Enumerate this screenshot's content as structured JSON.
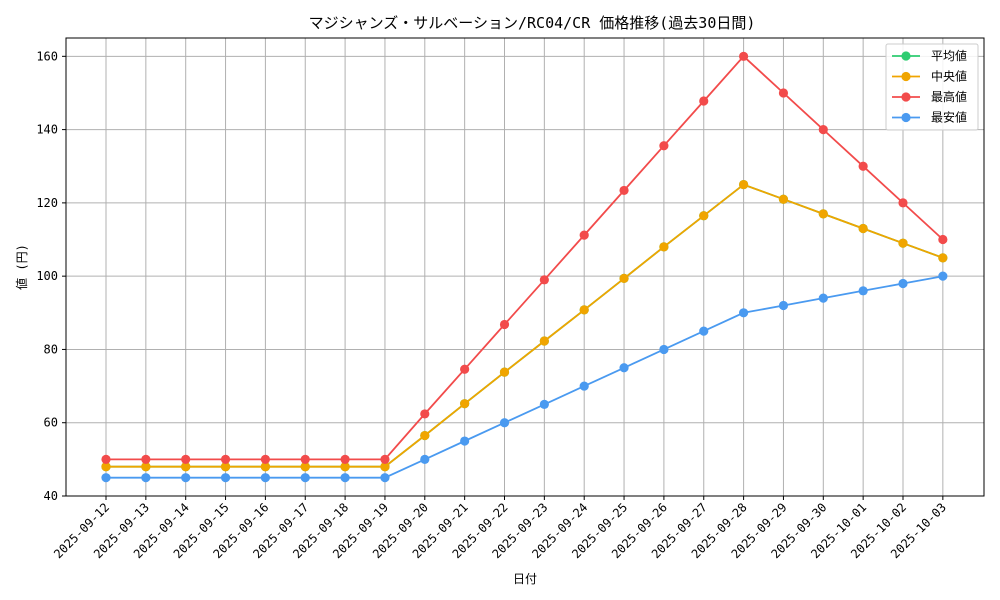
{
  "chart_data": {
    "type": "line",
    "title": "マジシャンズ・サルベーション/RC04/CR 価格推移(過去30日間)",
    "xlabel": "日付",
    "ylabel": "値 (円)",
    "ylim": [
      40,
      165
    ],
    "yticks": [
      40,
      60,
      80,
      100,
      120,
      140,
      160
    ],
    "grid": true,
    "legend_position": "top-right",
    "categories": [
      "2025-09-12",
      "2025-09-13",
      "2025-09-14",
      "2025-09-15",
      "2025-09-16",
      "2025-09-17",
      "2025-09-18",
      "2025-09-19",
      "2025-09-20",
      "2025-09-21",
      "2025-09-22",
      "2025-09-23",
      "2025-09-24",
      "2025-09-25",
      "2025-09-26",
      "2025-09-27",
      "2025-09-28",
      "2025-09-29",
      "2025-09-30",
      "2025-10-01",
      "2025-10-02",
      "2025-10-03"
    ],
    "series": [
      {
        "name": "平均値",
        "color": "#2ecc71",
        "values": [
          48,
          48,
          48,
          48,
          48,
          48,
          48,
          48,
          56.5,
          65.2,
          73.8,
          82.3,
          90.8,
          99.4,
          108,
          116.5,
          125,
          121,
          117,
          113,
          109,
          105
        ]
      },
      {
        "name": "中央値",
        "color": "#f0a500",
        "values": [
          48,
          48,
          48,
          48,
          48,
          48,
          48,
          48,
          56.5,
          65.2,
          73.8,
          82.3,
          90.8,
          99.4,
          108,
          116.5,
          125,
          121,
          117,
          113,
          109,
          105
        ]
      },
      {
        "name": "最高値",
        "color": "#f24b4b",
        "values": [
          50,
          50,
          50,
          50,
          50,
          50,
          50,
          50,
          62.4,
          74.6,
          86.8,
          99,
          111.2,
          123.4,
          135.6,
          147.8,
          160,
          150,
          140,
          130,
          120,
          110
        ]
      },
      {
        "name": "最安値",
        "color": "#4a9af0",
        "values": [
          45,
          45,
          45,
          45,
          45,
          45,
          45,
          45,
          50,
          55,
          60,
          65,
          70,
          75,
          80,
          85,
          90,
          92,
          94,
          96,
          98,
          100
        ]
      }
    ]
  }
}
